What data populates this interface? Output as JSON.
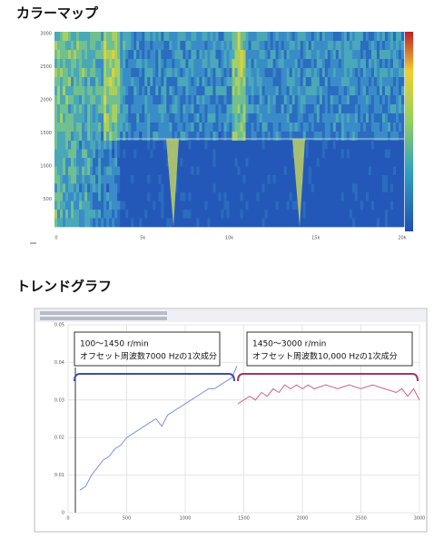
{
  "headings": {
    "color_map": "カラーマップ",
    "trend_graph": "トレンドグラフ"
  },
  "color_map": {
    "xticks": [
      "0",
      "5k",
      "10k",
      "15k",
      "20k"
    ],
    "yticks": [
      "3000",
      "2500",
      "2000",
      "1500",
      "1000",
      "500"
    ]
  },
  "chart_data": {
    "type": "line",
    "xlim": [
      0,
      3000
    ],
    "xticks": [
      0,
      500,
      1000,
      1500,
      2000,
      2500,
      3000
    ],
    "ylim": [
      0,
      0.05
    ],
    "yticks": [
      0,
      0.01,
      0.02,
      0.03,
      0.04,
      0.05
    ],
    "series": [
      {
        "color": "#7f8fdc",
        "x": [
          100,
          150,
          200,
          250,
          300,
          350,
          400,
          450,
          500,
          600,
          700,
          750,
          800,
          850,
          900,
          950,
          1000,
          1050,
          1100,
          1150,
          1200,
          1250,
          1300,
          1350,
          1400,
          1440
        ],
        "values": [
          0.006,
          0.007,
          0.01,
          0.012,
          0.014,
          0.015,
          0.017,
          0.018,
          0.02,
          0.022,
          0.024,
          0.025,
          0.023,
          0.026,
          0.027,
          0.028,
          0.029,
          0.03,
          0.031,
          0.032,
          0.033,
          0.033,
          0.034,
          0.035,
          0.036,
          0.039
        ]
      },
      {
        "color": "#d0608a",
        "x": [
          1450,
          1500,
          1550,
          1600,
          1650,
          1700,
          1750,
          1800,
          1850,
          1900,
          1950,
          2000,
          2050,
          2100,
          2200,
          2300,
          2400,
          2500,
          2600,
          2700,
          2800,
          2850,
          2900,
          2950,
          3000
        ],
        "values": [
          0.029,
          0.03,
          0.031,
          0.03,
          0.032,
          0.031,
          0.033,
          0.032,
          0.034,
          0.033,
          0.034,
          0.033,
          0.034,
          0.033,
          0.034,
          0.033,
          0.034,
          0.033,
          0.034,
          0.033,
          0.032,
          0.033,
          0.031,
          0.033,
          0.03
        ]
      }
    ],
    "annotations": [
      {
        "range": "100～1450 r/min",
        "text": "オフセット周波数7000 Hzの1次成分"
      },
      {
        "range": "1450～3000 r/min",
        "text": "オフセット周波数10,000 Hzの1次成分"
      }
    ]
  }
}
